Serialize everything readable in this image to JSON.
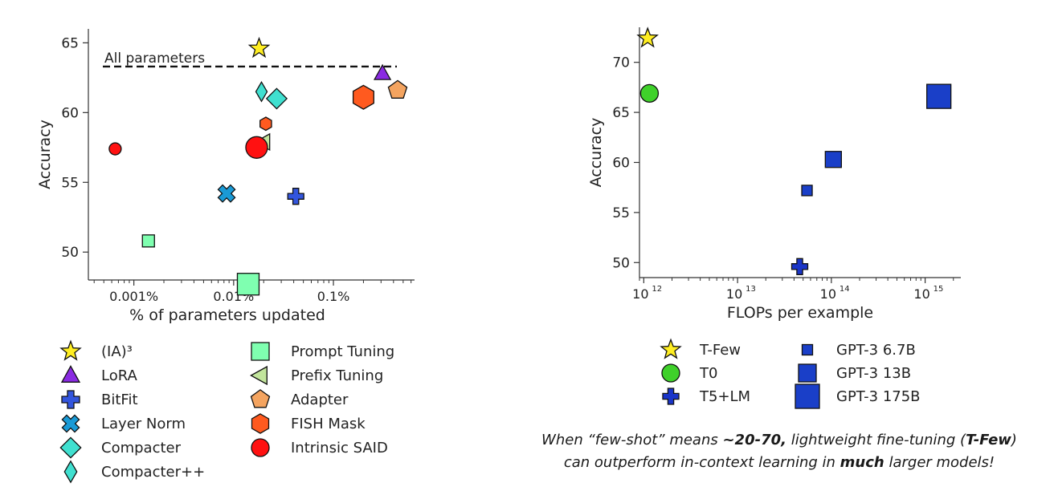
{
  "chart_data": [
    {
      "type": "scatter",
      "xlabel": "% of parameters updated",
      "ylabel": "Accuracy",
      "xscale": "log",
      "xlim": [
        0.00035,
        0.65
      ],
      "ylim": [
        48,
        66
      ],
      "x_ticks": [
        0.001,
        0.01,
        0.1
      ],
      "x_tick_labels": [
        "0.001%",
        "0.01%",
        "0.1%"
      ],
      "y_ticks": [
        50,
        55,
        60,
        65
      ],
      "y_tick_labels": [
        "50",
        "55",
        "60",
        "65"
      ],
      "reference_line": {
        "label": "All parameters",
        "y": 63.3
      },
      "grid": false,
      "legend_position": "below",
      "series": [
        {
          "name": "(IA)³",
          "marker": "star",
          "color": "#ffee22",
          "points": [
            {
              "x": 0.018,
              "y": 64.6
            }
          ]
        },
        {
          "name": "LoRA",
          "marker": "triangle",
          "color": "#8a2be2",
          "points": [
            {
              "x": 0.31,
              "y": 62.8
            }
          ]
        },
        {
          "name": "BitFit",
          "marker": "plus",
          "color": "#3355dd",
          "points": [
            {
              "x": 0.042,
              "y": 54.0
            }
          ]
        },
        {
          "name": "Layer Norm",
          "marker": "x",
          "color": "#1a9ad6",
          "points": [
            {
              "x": 0.0085,
              "y": 54.2
            }
          ]
        },
        {
          "name": "Compacter",
          "marker": "diamond",
          "color": "#40e0d0",
          "points": [
            {
              "x": 0.027,
              "y": 61.0
            }
          ]
        },
        {
          "name": "Compacter++",
          "marker": "thin-diamond",
          "color": "#40e0d0",
          "points": [
            {
              "x": 0.019,
              "y": 61.5
            }
          ]
        },
        {
          "name": "Prompt Tuning",
          "marker": "square",
          "color": "#7fffb0",
          "points": [
            {
              "x": 0.0014,
              "y": 50.8,
              "size": "small"
            },
            {
              "x": 0.014,
              "y": 47.7,
              "size": "large"
            }
          ]
        },
        {
          "name": "Prefix Tuning",
          "marker": "triangle-left",
          "color": "#c2e59c",
          "points": [
            {
              "x": 0.02,
              "y": 57.9
            }
          ]
        },
        {
          "name": "Adapter",
          "marker": "pentagon",
          "color": "#f4a460",
          "points": [
            {
              "x": 0.44,
              "y": 61.6
            }
          ]
        },
        {
          "name": "FISH Mask",
          "marker": "hexagon",
          "color": "#ff5a1f",
          "points": [
            {
              "x": 0.2,
              "y": 61.1,
              "size": "large"
            },
            {
              "x": 0.021,
              "y": 59.2,
              "size": "small"
            }
          ]
        },
        {
          "name": "Intrinsic SAID",
          "marker": "circle",
          "color": "#ff1111",
          "points": [
            {
              "x": 0.00065,
              "y": 57.4,
              "size": "small"
            },
            {
              "x": 0.017,
              "y": 57.5,
              "size": "large"
            }
          ]
        }
      ]
    },
    {
      "type": "scatter",
      "xlabel": "FLOPs per example",
      "ylabel": "Accuracy",
      "xscale": "log",
      "xlim": [
        900000000000,
        2400000000000000
      ],
      "ylim": [
        48.5,
        73.5
      ],
      "x_ticks": [
        1000000000000,
        10000000000000,
        100000000000000,
        1000000000000000
      ],
      "x_tick_labels": [
        [
          "10",
          "12"
        ],
        [
          "10",
          "13"
        ],
        [
          "10",
          "14"
        ],
        [
          "10",
          "15"
        ]
      ],
      "y_ticks": [
        50,
        55,
        60,
        65,
        70
      ],
      "y_tick_labels": [
        "50",
        "55",
        "60",
        "65",
        "70"
      ],
      "grid": false,
      "legend_position": "below",
      "series": [
        {
          "name": "T-Few",
          "marker": "star",
          "color": "#ffee22",
          "points": [
            {
              "x": 1100000000000,
              "y": 72.4
            }
          ]
        },
        {
          "name": "T0",
          "marker": "circle",
          "color": "#3fd12a",
          "points": [
            {
              "x": 1150000000000,
              "y": 66.9
            }
          ]
        },
        {
          "name": "T5+LM",
          "marker": "plus",
          "color": "#1a35c8",
          "points": [
            {
              "x": 46000000000000,
              "y": 49.6
            }
          ]
        },
        {
          "name": "GPT-3 6.7B",
          "marker": "square",
          "color": "#1a3fc8",
          "size": 13,
          "points": [
            {
              "x": 55000000000000,
              "y": 57.2
            }
          ]
        },
        {
          "name": "GPT-3 13B",
          "marker": "square",
          "color": "#1a3fc8",
          "size": 20,
          "points": [
            {
              "x": 105000000000000,
              "y": 60.3
            }
          ]
        },
        {
          "name": "GPT-3 175B",
          "marker": "square",
          "color": "#1a3fc8",
          "size": 30,
          "points": [
            {
              "x": 1400000000000000,
              "y": 66.6
            }
          ]
        }
      ]
    }
  ],
  "caption": {
    "p1": "When “few-shot” means ",
    "b1": "~20-70,",
    "p2": " lightweight fine-tuning (",
    "b2": "T-Few",
    "p3": ")",
    "p4": "can outperform in-context learning in ",
    "b3": "much",
    "p5": " larger models!"
  }
}
